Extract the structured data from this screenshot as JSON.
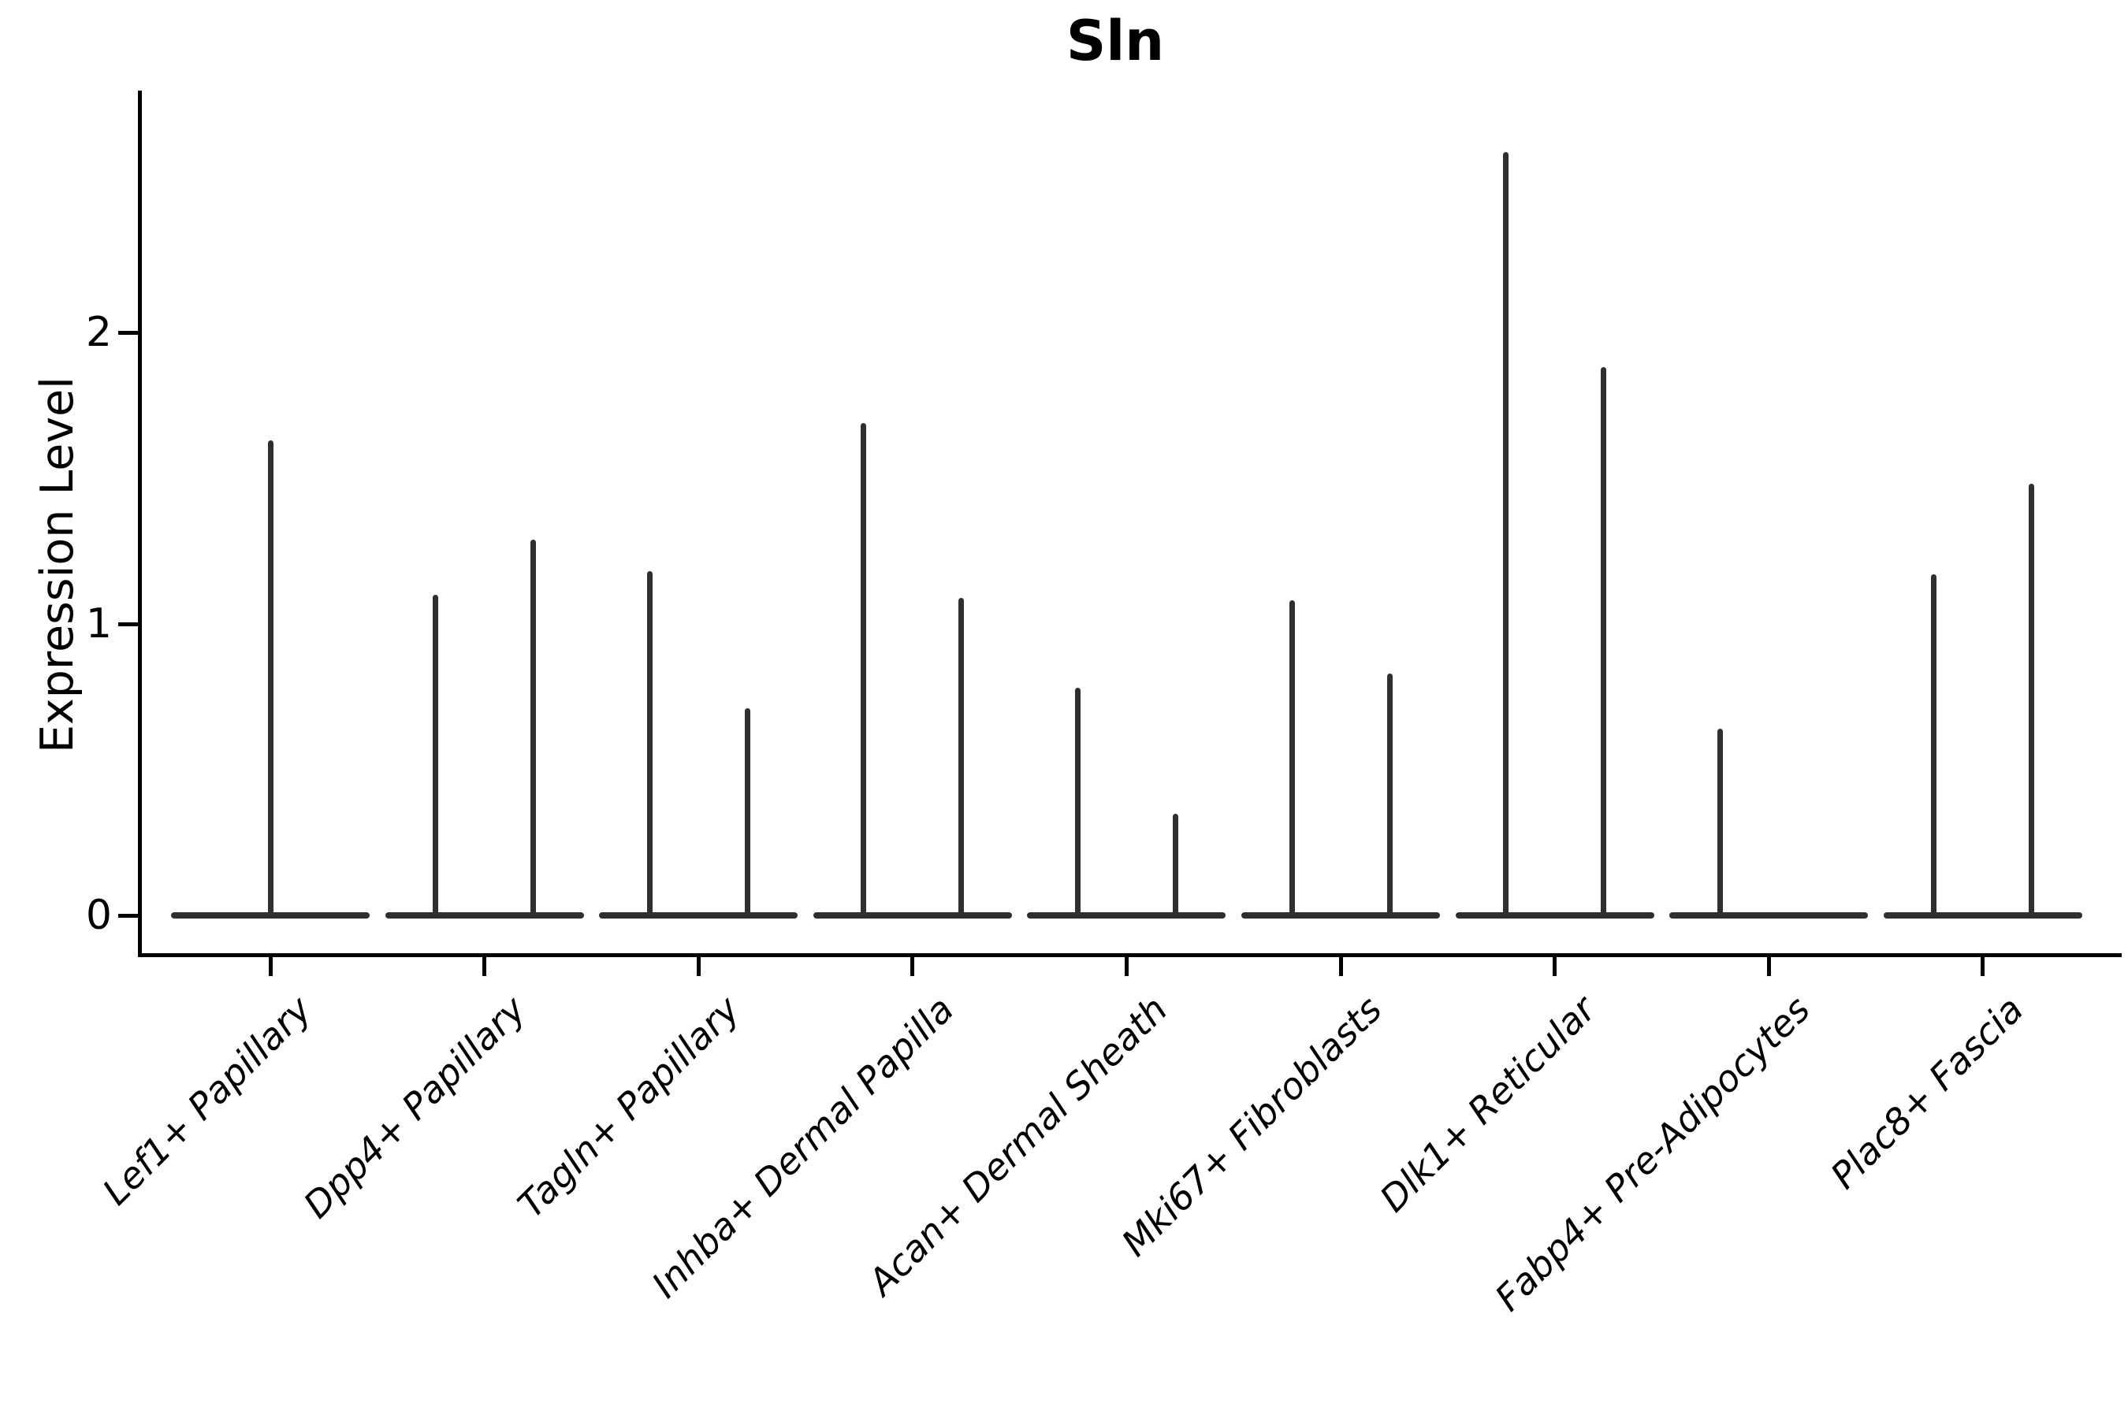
{
  "header": {
    "title": "Sln"
  },
  "y_axis": {
    "label": "Expression Level",
    "tick_labels": [
      "0",
      "1",
      "2"
    ]
  },
  "chart_data": {
    "type": "violin",
    "title": "Sln",
    "xlabel": "",
    "ylabel": "Expression Level",
    "ylim": [
      0,
      2.82
    ],
    "yticks": [
      0,
      1,
      2
    ],
    "grid": false,
    "legend": "none",
    "categories": [
      "Lef1+ Papillary",
      "Dpp4+ Papillary",
      "Tagln+ Papillary",
      "Inhba+ Dermal Papilla",
      "Acan+ Dermal Sheath",
      "Mki67+ Fibroblasts",
      "Dlk1+ Reticular",
      "Fabp4+ Pre-Adipocytes",
      "Plac8+ Fascia"
    ],
    "description": "Seurat-style violin plot of Sln expression per fibroblast cluster. Expression is near zero in most cells, so each violin collapses to a flat horizontal bar at 0 with a thin vertical spike rising to the maximum expression value of each (dodged) violin.",
    "violins": [
      {
        "category": "Lef1+ Papillary",
        "spikes": [
          {
            "pos": "center",
            "max": 1.63
          }
        ]
      },
      {
        "category": "Dpp4+ Papillary",
        "spikes": [
          {
            "pos": "left",
            "max": 1.1
          },
          {
            "pos": "right",
            "max": 1.29
          }
        ]
      },
      {
        "category": "Tagln+ Papillary",
        "spikes": [
          {
            "pos": "left",
            "max": 1.18
          },
          {
            "pos": "right",
            "max": 0.71
          }
        ]
      },
      {
        "category": "Inhba+ Dermal Papilla",
        "spikes": [
          {
            "pos": "left",
            "max": 1.69
          },
          {
            "pos": "right",
            "max": 1.09
          }
        ]
      },
      {
        "category": "Acan+ Dermal Sheath",
        "spikes": [
          {
            "pos": "left",
            "max": 0.78
          },
          {
            "pos": "right",
            "max": 0.35
          }
        ]
      },
      {
        "category": "Mki67+ Fibroblasts",
        "spikes": [
          {
            "pos": "left",
            "max": 1.08
          },
          {
            "pos": "right",
            "max": 0.83
          }
        ]
      },
      {
        "category": "Dlk1+ Reticular",
        "spikes": [
          {
            "pos": "left",
            "max": 2.62
          },
          {
            "pos": "right",
            "max": 1.88
          }
        ]
      },
      {
        "category": "Fabp4+ Pre-Adipocytes",
        "spikes": [
          {
            "pos": "left",
            "max": 0.64
          }
        ]
      },
      {
        "category": "Plac8+ Fascia",
        "spikes": [
          {
            "pos": "left",
            "max": 1.17
          },
          {
            "pos": "right",
            "max": 1.48
          }
        ]
      }
    ],
    "colors": {
      "ink": "#000000",
      "violin": "#2f2f2f"
    }
  }
}
